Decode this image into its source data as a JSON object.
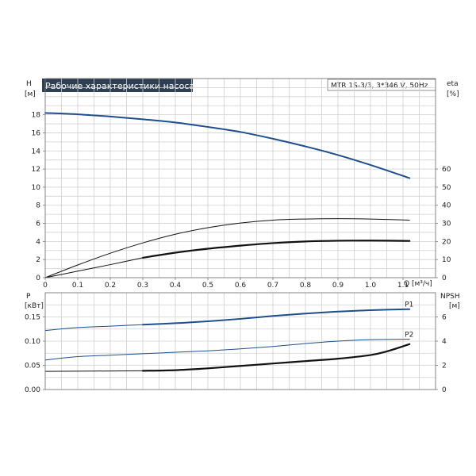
{
  "chart_data": {
    "type": "line",
    "title": "Рабочие характеристики насоса",
    "model": "MTR 1S-3/3, 3*346 V, 50Hz",
    "x_axis": {
      "label": "Q [м³/ч]",
      "range": [
        0,
        1.2
      ],
      "ticks": [
        0,
        0.1,
        0.2,
        0.3,
        0.4,
        0.5,
        0.6,
        0.7,
        0.8,
        0.9,
        1.0,
        1.1
      ],
      "tick_labels": [
        "0",
        "0.1",
        "0.2",
        "0.3",
        "0.4",
        "0.5",
        "0.6",
        "0.7",
        "0.8",
        "0.9",
        "1.0",
        "1.1"
      ],
      "grid_step": 0.05
    },
    "top_panel": {
      "left_axis": {
        "label": "H",
        "unit": "[м]",
        "range": [
          0,
          22
        ],
        "ticks": [
          0,
          2,
          4,
          6,
          8,
          10,
          12,
          14,
          16,
          18
        ],
        "grid_step": 1
      },
      "right_axis": {
        "label": "eta",
        "unit": "[%]",
        "range": [
          0,
          110
        ],
        "ticks": [
          0,
          10,
          20,
          30,
          40,
          50,
          60
        ]
      },
      "series": [
        {
          "axis": "left",
          "color": "#1f4e8c",
          "width": 2,
          "points": [
            [
              0,
              18.2
            ],
            [
              0.1,
              18.05
            ],
            [
              0.2,
              17.8
            ],
            [
              0.3,
              17.5
            ],
            [
              0.4,
              17.15
            ],
            [
              0.5,
              16.65
            ],
            [
              0.6,
              16.1
            ],
            [
              0.7,
              15.35
            ],
            [
              0.8,
              14.5
            ],
            [
              0.9,
              13.55
            ],
            [
              1.0,
              12.45
            ],
            [
              1.12,
              11.0
            ]
          ]
        },
        {
          "axis": "right",
          "color": "#111111",
          "width": 1,
          "points": [
            [
              0,
              0
            ],
            [
              0.1,
              7
            ],
            [
              0.2,
              13.5
            ],
            [
              0.3,
              19.2
            ],
            [
              0.4,
              24
            ],
            [
              0.5,
              27.6
            ],
            [
              0.6,
              30.2
            ],
            [
              0.7,
              31.8
            ],
            [
              0.8,
              32.4
            ],
            [
              0.9,
              32.6
            ],
            [
              1.0,
              32.4
            ],
            [
              1.12,
              31.8
            ]
          ]
        },
        {
          "axis": "right",
          "color": "#111111",
          "width": 2.2,
          "points": [
            [
              0.3,
              11
            ],
            [
              0.4,
              13.8
            ],
            [
              0.5,
              16
            ],
            [
              0.6,
              17.7
            ],
            [
              0.7,
              19.1
            ],
            [
              0.8,
              20
            ],
            [
              0.9,
              20.4
            ],
            [
              1.0,
              20.5
            ],
            [
              1.12,
              20.3
            ]
          ]
        },
        {
          "axis": "right",
          "color": "#111111",
          "width": 1,
          "points": [
            [
              0,
              0
            ],
            [
              0.1,
              3.6
            ],
            [
              0.2,
              7.2
            ],
            [
              0.3,
              11
            ]
          ]
        }
      ]
    },
    "bottom_panel": {
      "left_axis": {
        "label": "P",
        "unit": "[кВт]",
        "range": [
          0,
          0.2
        ],
        "ticks": [
          0,
          0.05,
          0.1,
          0.15
        ],
        "tick_labels": [
          "0.00",
          "0.05",
          "0.10",
          "0.15"
        ],
        "grid_step": 0.025
      },
      "right_axis": {
        "label": "NPSH",
        "unit": "[м]",
        "range": [
          0,
          8
        ],
        "ticks": [
          0,
          2,
          4,
          6
        ]
      },
      "series": [
        {
          "name": "P1",
          "axis": "left",
          "color": "#1f4e8c",
          "width": 1,
          "points": [
            [
              0,
              0.122
            ],
            [
              0.1,
              0.128
            ],
            [
              0.2,
              0.131
            ],
            [
              0.3,
              0.134
            ],
            [
              0.4,
              0.137
            ],
            [
              0.5,
              0.141
            ],
            [
              0.6,
              0.146
            ],
            [
              0.7,
              0.152
            ],
            [
              0.8,
              0.157
            ],
            [
              0.9,
              0.161
            ],
            [
              1.0,
              0.164
            ],
            [
              1.12,
              0.166
            ]
          ]
        },
        {
          "axis": "left",
          "color": "#1f4e8c",
          "width": 2,
          "points": [
            [
              0.3,
              0.134
            ],
            [
              0.4,
              0.137
            ],
            [
              0.5,
              0.141
            ],
            [
              0.6,
              0.146
            ],
            [
              0.7,
              0.152
            ],
            [
              0.8,
              0.157
            ],
            [
              0.9,
              0.161
            ],
            [
              1.0,
              0.164
            ],
            [
              1.12,
              0.166
            ]
          ]
        },
        {
          "name": "P2",
          "axis": "left",
          "color": "#1f4e8c",
          "width": 1,
          "points": [
            [
              0,
              0.061
            ],
            [
              0.1,
              0.068
            ],
            [
              0.2,
              0.071
            ],
            [
              0.3,
              0.074
            ],
            [
              0.4,
              0.077
            ],
            [
              0.5,
              0.08
            ],
            [
              0.6,
              0.084
            ],
            [
              0.7,
              0.089
            ],
            [
              0.8,
              0.095
            ],
            [
              0.9,
              0.1
            ],
            [
              1.0,
              0.103
            ],
            [
              1.12,
              0.104
            ]
          ]
        },
        {
          "axis": "right",
          "color": "#111111",
          "width": 1,
          "points": [
            [
              0,
              1.5
            ],
            [
              0.3,
              1.55
            ]
          ]
        },
        {
          "axis": "right",
          "color": "#111111",
          "width": 2.2,
          "points": [
            [
              0.3,
              1.55
            ],
            [
              0.4,
              1.6
            ],
            [
              0.5,
              1.75
            ],
            [
              0.6,
              1.95
            ],
            [
              0.7,
              2.15
            ],
            [
              0.8,
              2.35
            ],
            [
              0.9,
              2.55
            ],
            [
              1.0,
              2.85
            ],
            [
              1.05,
              3.15
            ],
            [
              1.12,
              3.75
            ]
          ]
        }
      ]
    }
  }
}
